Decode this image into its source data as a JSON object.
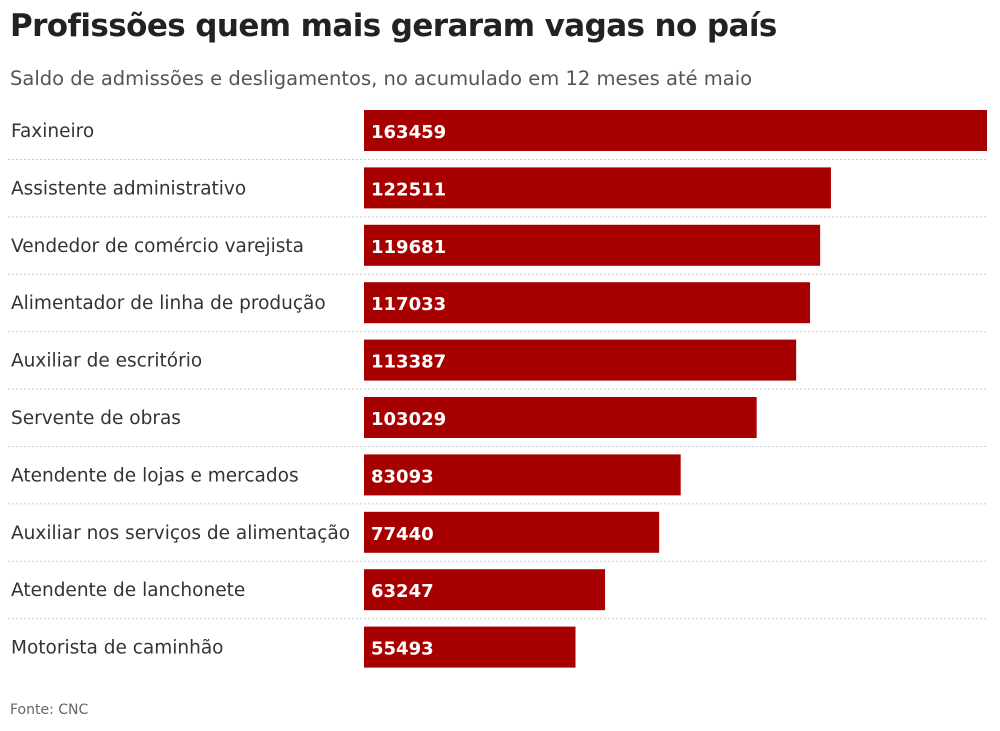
{
  "header": {
    "title": "Profissões quem mais geraram vagas no país",
    "subtitle": "Saldo de admissões e desligamentos, no acumulado em 12 meses até maio"
  },
  "footer": {
    "source": "Fonte: CNC"
  },
  "colors": {
    "bar": "#a70000",
    "bar_label": "#ffffff",
    "category_label": "#333333",
    "row_separator": "#cccccc"
  },
  "chart_data": {
    "type": "bar",
    "orientation": "horizontal",
    "categories": [
      "Faxineiro",
      "Assistente administrativo",
      "Vendedor de comércio varejista",
      "Alimentador de linha de produção",
      "Auxiliar de escritório",
      "Servente de obras",
      "Atendente de lojas e mercados",
      "Auxiliar nos serviços de alimentação",
      "Atendente de lanchonete",
      "Motorista de caminhão"
    ],
    "values": [
      163459,
      122511,
      119681,
      117033,
      113387,
      103029,
      83093,
      77440,
      63247,
      55493
    ],
    "value_labels": [
      "163459",
      "122511",
      "119681",
      "117033",
      "113387",
      "103029",
      "83093",
      "77440",
      "63247",
      "55493"
    ],
    "xlim": [
      0,
      163459
    ],
    "grid": false,
    "legend": "none",
    "data_labels": "inside-bar-left"
  }
}
